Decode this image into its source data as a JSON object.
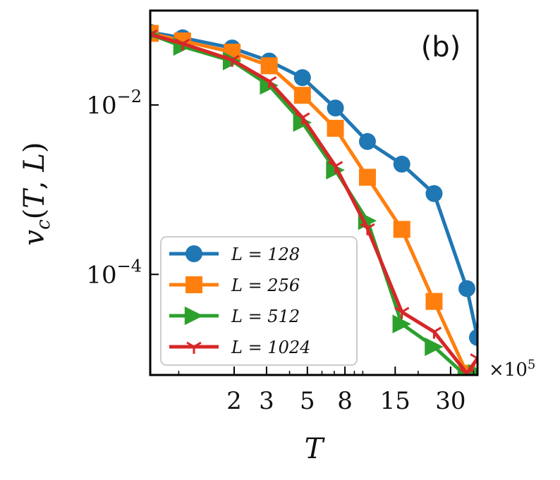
{
  "chart_data": {
    "type": "line",
    "panel_label": "(b)",
    "xlabel": "T",
    "ylabel": "v_c(T, L)",
    "x_multiplier_label": "×10",
    "x_multiplier_exp": "5",
    "xscale": "log",
    "yscale": "log",
    "xlim": [
      0.7,
      42
    ],
    "ylim": [
      6.5e-06,
      0.13
    ],
    "x_ticks": [
      2,
      3,
      5,
      8,
      15,
      30
    ],
    "x_tick_labels": [
      "2",
      "3",
      "5",
      "8",
      "15",
      "30"
    ],
    "y_ticks": [
      0.01,
      0.0001
    ],
    "y_tick_labels": [
      {
        "base": "10",
        "exp": "−2"
      },
      {
        "base": "10",
        "exp": "−4"
      }
    ],
    "legend_position": "lower-left",
    "grid": false,
    "series": [
      {
        "name": "L = 128",
        "color": "#1f77b4",
        "marker": "circle",
        "x": [
          0.7,
          1.05,
          1.95,
          3.1,
          4.7,
          7.1,
          10.6,
          16.3,
          24.4,
          36.8,
          42
        ],
        "y": [
          0.072,
          0.062,
          0.047,
          0.033,
          0.021,
          0.0092,
          0.0037,
          0.002,
          0.0009,
          6.8e-05,
          1.8e-05
        ]
      },
      {
        "name": "L = 256",
        "color": "#ff7f0e",
        "marker": "square",
        "x": [
          0.7,
          1.05,
          1.95,
          3.1,
          4.7,
          7.1,
          10.6,
          16.3,
          24.4,
          36.8,
          42
        ],
        "y": [
          0.07,
          0.057,
          0.042,
          0.029,
          0.013,
          0.0053,
          0.0014,
          0.00034,
          4.8e-05,
          6.8e-06,
          5.5e-06
        ]
      },
      {
        "name": "L = 512",
        "color": "#2ca02c",
        "marker": "triangle-right",
        "x": [
          0.7,
          1.05,
          1.95,
          3.1,
          4.7,
          7.1,
          10.6,
          16.3,
          24.4,
          36.8,
          42
        ],
        "y": [
          0.068,
          0.049,
          0.033,
          0.017,
          0.0062,
          0.0017,
          0.00043,
          2.6e-05,
          1.4e-05,
          6.2e-06,
          6.8e-06
        ]
      },
      {
        "name": "L = 1024",
        "color": "#d62728",
        "marker": "tri-down",
        "x": [
          0.7,
          1.05,
          1.95,
          3.1,
          4.7,
          7.1,
          10.6,
          16.3,
          24.4,
          36.8,
          42
        ],
        "y": [
          0.068,
          0.053,
          0.034,
          0.019,
          0.0071,
          0.0019,
          0.00035,
          3.6e-05,
          2.1e-05,
          6.8e-06,
          1.02e-05
        ]
      }
    ]
  }
}
